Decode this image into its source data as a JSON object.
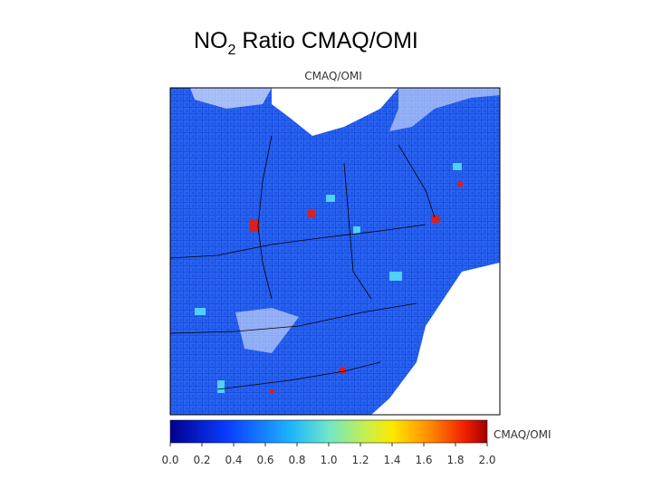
{
  "slide_title": {
    "main": "NO",
    "subscript": "2",
    "rest": "Ratio CMAQ/OMI"
  },
  "map": {
    "title": "CMAQ/OMI"
  },
  "colorbar": {
    "label": "CMAQ/OMI",
    "range": [
      0,
      2
    ],
    "ticks": [
      {
        "value": 0,
        "label": "0.0"
      },
      {
        "value": 0.2,
        "label": "0.2"
      },
      {
        "value": 0.4,
        "label": "0.4"
      },
      {
        "value": 0.6,
        "label": "0.6"
      },
      {
        "value": 0.8,
        "label": "0.8"
      },
      {
        "value": 1,
        "label": "1.0"
      },
      {
        "value": 1.2,
        "label": "1.2"
      },
      {
        "value": 1.4,
        "label": "1.4"
      },
      {
        "value": 1.6,
        "label": "1.6"
      },
      {
        "value": 1.8,
        "label": "1.8"
      },
      {
        "value": 2,
        "label": "2.0"
      }
    ]
  }
}
